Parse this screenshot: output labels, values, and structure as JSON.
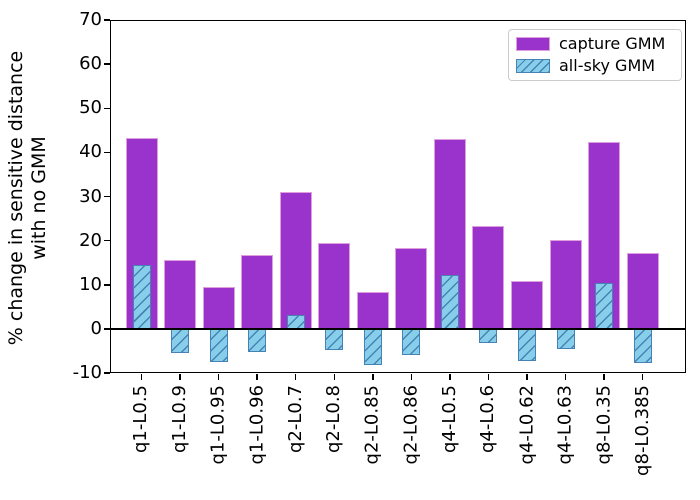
{
  "chart_data": {
    "type": "bar",
    "title": "",
    "ylabel_line1": "% change in sensitive distance",
    "ylabel_line2": "with no GMM",
    "xlabel": "",
    "ylim": [
      -10,
      70
    ],
    "yticks": [
      70,
      60,
      50,
      40,
      30,
      20,
      10,
      0,
      -10
    ],
    "grid": false,
    "zero_line": true,
    "legend_position": "upper right",
    "categories": [
      "q1-L0.5",
      "q1-L0.9",
      "q1-L0.95",
      "q1-L0.96",
      "q2-L0.7",
      "q2-L0.8",
      "q2-L0.85",
      "q2-L0.86",
      "q4-L0.5",
      "q4-L0.6",
      "q4-L0.62",
      "q4-L0.63",
      "q8-L0.35",
      "q8-L0.385"
    ],
    "series": [
      {
        "name": "capture GMM",
        "fill_color": "#9933cc",
        "edge_color": "#dda0dd",
        "hatch": "none",
        "values": [
          43.2,
          15.6,
          9.5,
          16.8,
          31.1,
          19.5,
          8.4,
          18.4,
          43.0,
          23.4,
          10.9,
          20.2,
          42.4,
          17.1
        ]
      },
      {
        "name": "all-sky GMM",
        "fill_color": "#87ceeb",
        "edge_color": "#4682b4",
        "hatch": "/",
        "values": [
          14.5,
          -5.4,
          -7.6,
          -5.3,
          3.2,
          -4.7,
          -8.3,
          -6.0,
          12.1,
          -3.2,
          -7.2,
          -4.6,
          10.5,
          -7.7
        ]
      }
    ]
  }
}
